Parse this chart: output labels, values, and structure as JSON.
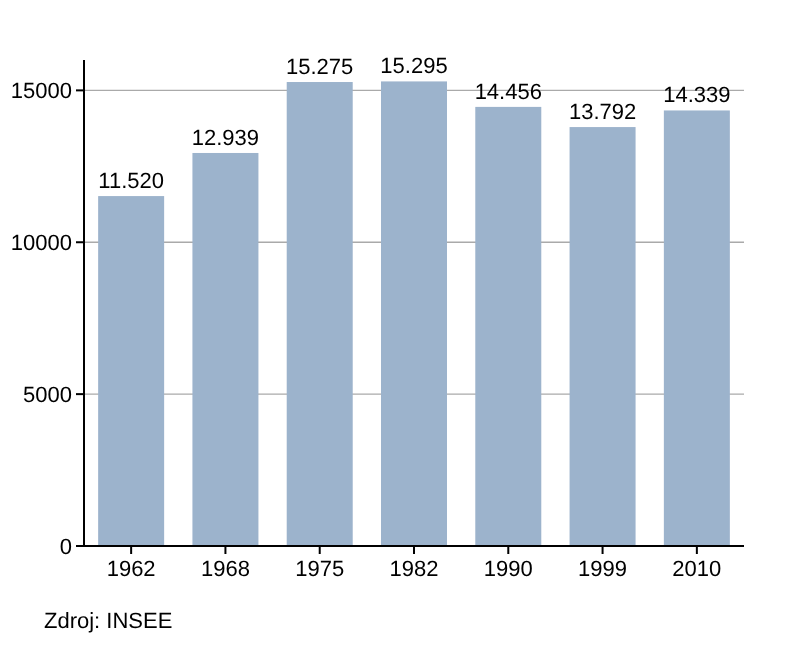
{
  "chart_data": {
    "type": "bar",
    "categories": [
      "1962",
      "1968",
      "1975",
      "1982",
      "1990",
      "1999",
      "2010"
    ],
    "values": [
      11520,
      12939,
      15275,
      15295,
      14456,
      13792,
      14339
    ],
    "value_labels": [
      "11.520",
      "12.939",
      "15.275",
      "15.295",
      "14.456",
      "13.792",
      "14.339"
    ],
    "color": "#9cb3cc",
    "ylim": [
      0,
      16000
    ],
    "yticks": [
      0,
      5000,
      10000,
      15000
    ],
    "grid": "y",
    "annotations": [
      "Zdroj: INSEE"
    ]
  }
}
